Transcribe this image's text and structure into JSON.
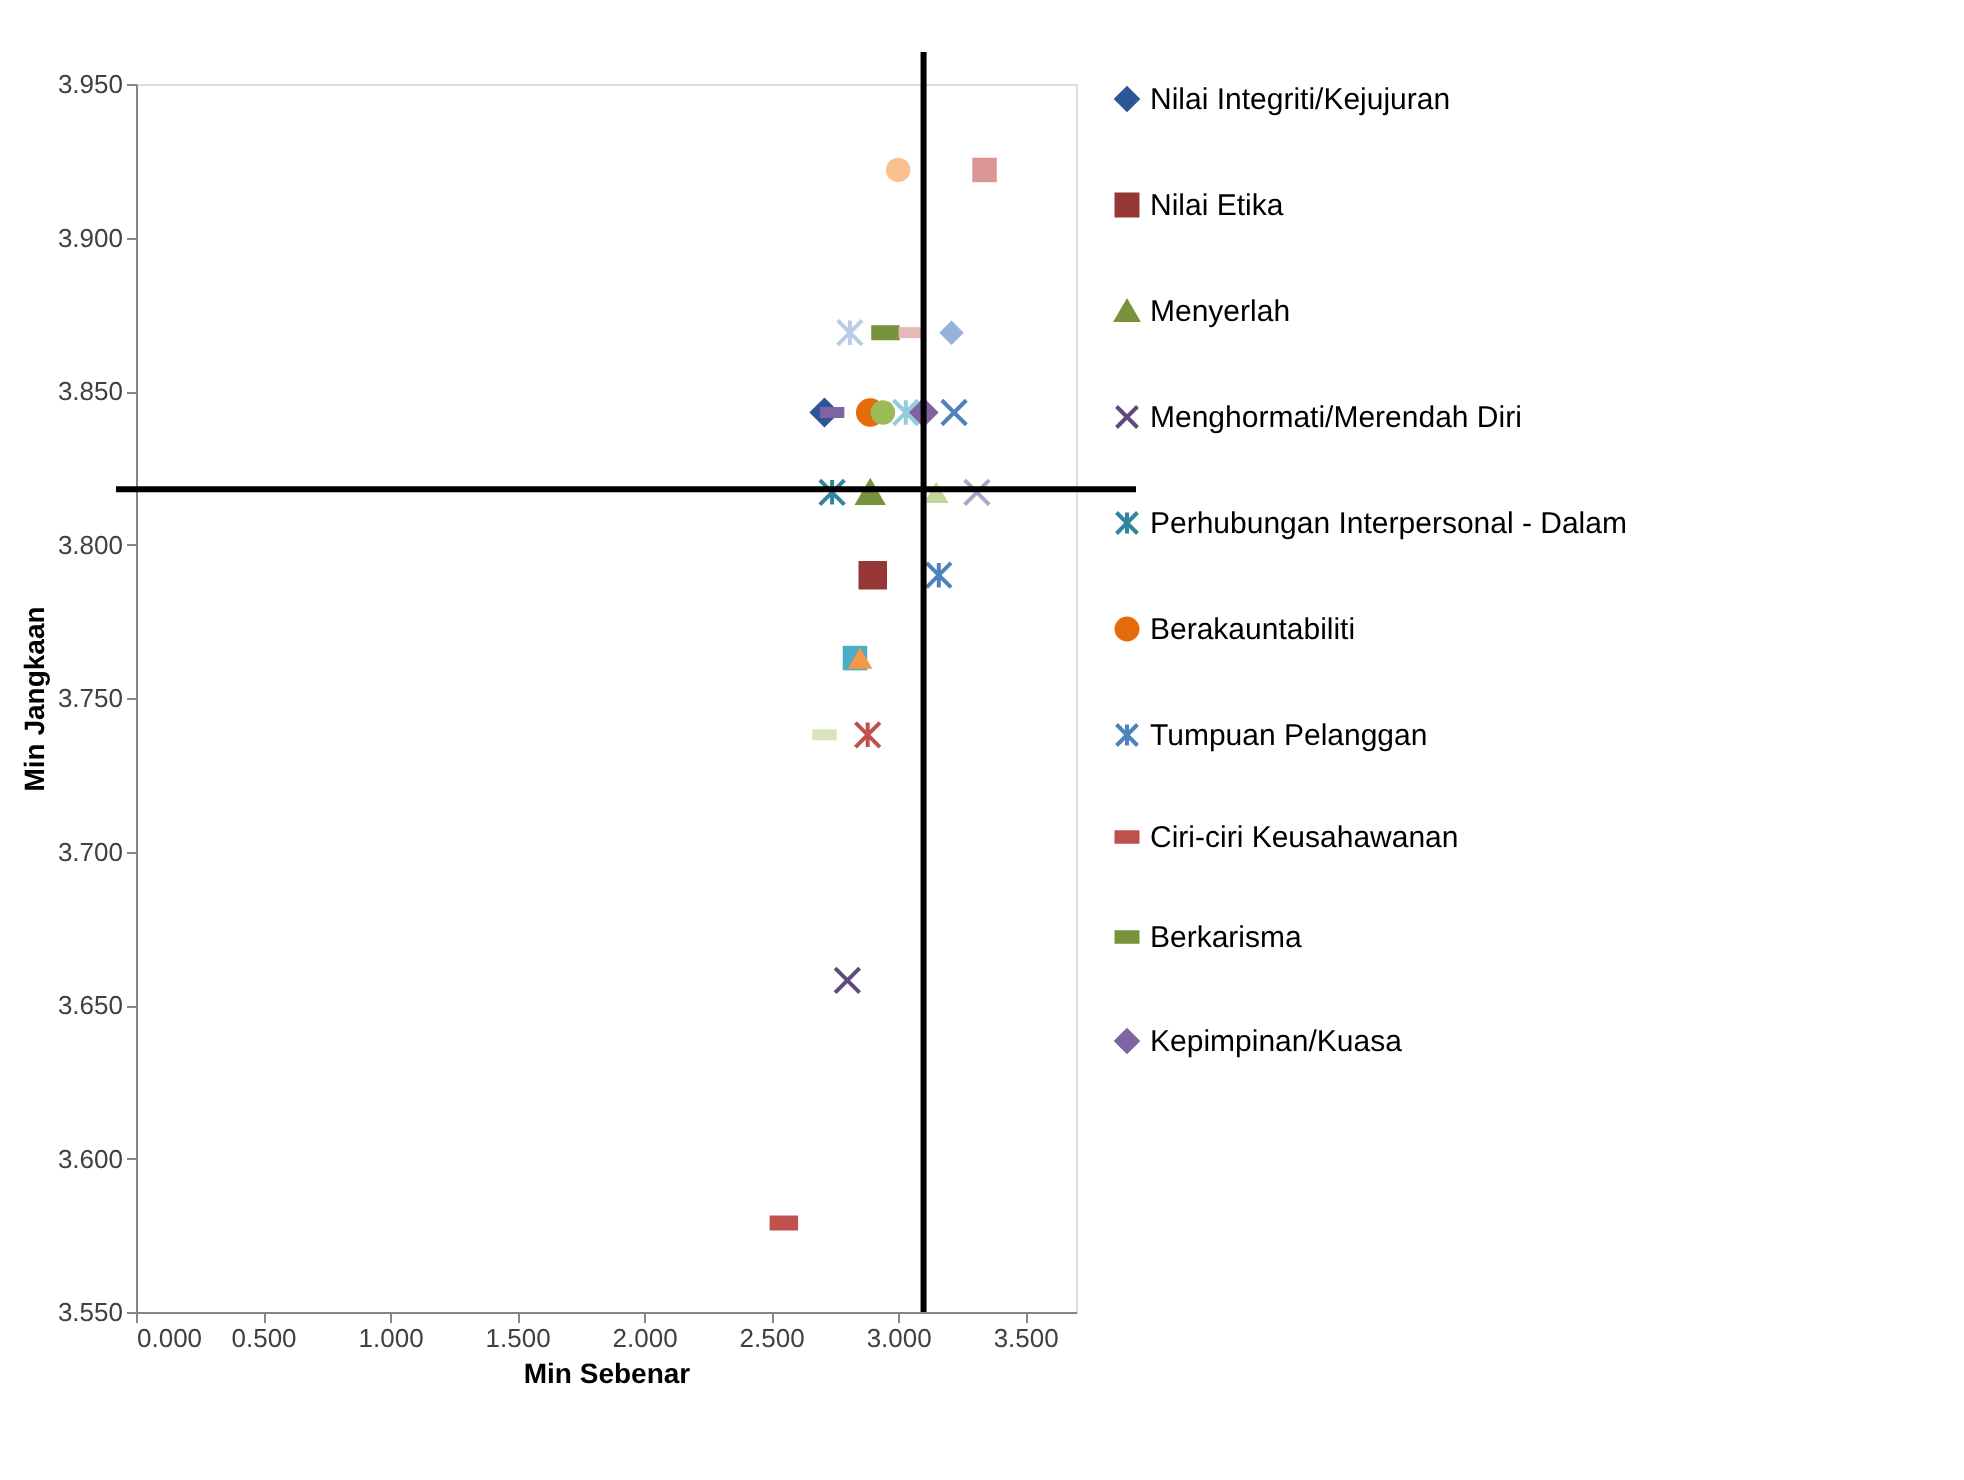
{
  "chart_data": {
    "type": "scatter",
    "xlabel": "Min Sebenar",
    "ylabel": "Min Jangkaan",
    "xlim": [
      0,
      3.7
    ],
    "ylim": [
      3.55,
      3.95
    ],
    "xticks": [
      {
        "value": 0,
        "label": "0.000"
      },
      {
        "value": 0.5,
        "label": "0.500"
      },
      {
        "value": 1,
        "label": "1.000"
      },
      {
        "value": 1.5,
        "label": "1.500"
      },
      {
        "value": 2,
        "label": "2.000"
      },
      {
        "value": 2.5,
        "label": "2.500"
      },
      {
        "value": 3,
        "label": "3.000"
      },
      {
        "value": 3.5,
        "label": "3.500"
      }
    ],
    "yticks": [
      {
        "value": 3.55,
        "label": "3.550"
      },
      {
        "value": 3.6,
        "label": "3.600"
      },
      {
        "value": 3.65,
        "label": "3.650"
      },
      {
        "value": 3.7,
        "label": "3.700"
      },
      {
        "value": 3.75,
        "label": "3.750"
      },
      {
        "value": 3.8,
        "label": "3.800"
      },
      {
        "value": 3.85,
        "label": "3.850"
      },
      {
        "value": 3.9,
        "label": "3.900"
      },
      {
        "value": 3.95,
        "label": "3.950"
      }
    ],
    "grid": false,
    "legend": "right",
    "ref_lines": [
      {
        "axis": "x",
        "value": 3.1,
        "color": "#000000"
      },
      {
        "axis": "y",
        "value": 3.818,
        "color": "#000000"
      }
    ],
    "series": [
      {
        "name": "Nilai Integriti/Kejujuran",
        "color": "#2e5597",
        "marker": "diamond",
        "x": [
          2.71
        ],
        "values": [
          3.843
        ]
      },
      {
        "name": "Nilai Etika",
        "color": "#953735",
        "marker": "square",
        "x": [
          2.9
        ],
        "values": [
          3.79
        ]
      },
      {
        "name": "Menyerlah",
        "color": "#77933c",
        "marker": "triangle",
        "x": [
          2.89
        ],
        "values": [
          3.817
        ]
      },
      {
        "name": "Menghormati/Merendah Diri",
        "color": "#604a7b",
        "marker": "x",
        "x": [
          2.8
        ],
        "values": [
          3.658
        ]
      },
      {
        "name": "Perhubungan Interpersonal - Dalam",
        "color": "#31859c",
        "marker": "cross",
        "x": [
          2.74
        ],
        "values": [
          3.817
        ]
      },
      {
        "name": "Berakauntabiliti",
        "color": "#e46c0a",
        "marker": "circle",
        "x": [
          2.89
        ],
        "values": [
          3.843
        ]
      },
      {
        "name": "Tumpuan Pelanggan",
        "color": "#4f81bd",
        "marker": "cross",
        "x": [
          3.16
        ],
        "values": [
          3.79
        ]
      },
      {
        "name": "Ciri-ciri Keusahawanan",
        "color": "#c0504d",
        "x": [
          2.55
        ],
        "values": [
          3.579
        ]
      },
      {
        "name": "Berkarisma",
        "color": "#77933c",
        "x": [
          2.95
        ],
        "values": [
          3.869
        ]
      },
      {
        "name": "Kepimpinan/Kuasa",
        "color": "#8064a2",
        "marker": "diamond",
        "x": [
          3.1
        ],
        "values": [
          3.843
        ]
      },
      {
        "color": "#fac090",
        "marker": "circle",
        "x": [
          3.0
        ],
        "values": [
          3.922
        ]
      },
      {
        "color": "#d99694",
        "marker": "square",
        "x": [
          3.34
        ],
        "values": [
          3.922
        ]
      },
      {
        "color": "#b9cde5",
        "marker": "cross",
        "x": [
          2.81
        ],
        "values": [
          3.869
        ]
      },
      {
        "color": "#e6b9b8",
        "x": [
          3.05
        ],
        "values": [
          3.869
        ]
      },
      {
        "color": "#95b3d7",
        "marker": "diamond",
        "x": [
          3.21
        ],
        "values": [
          3.869
        ]
      },
      {
        "color": "#8064a2",
        "x": [
          2.74
        ],
        "values": [
          3.843
        ]
      },
      {
        "color": "#9bbb59",
        "marker": "circle",
        "x": [
          2.94
        ],
        "values": [
          3.843
        ]
      },
      {
        "color": "#93cddd",
        "marker": "cross",
        "x": [
          3.03
        ],
        "values": [
          3.843
        ]
      },
      {
        "color": "#4f81bd",
        "marker": "x",
        "x": [
          3.22
        ],
        "values": [
          3.843
        ]
      },
      {
        "color": "#c3d69b",
        "marker": "triangle",
        "x": [
          3.15
        ],
        "values": [
          3.817
        ]
      },
      {
        "color": "#b3a2c7",
        "marker": "x",
        "x": [
          3.31
        ],
        "values": [
          3.817
        ]
      },
      {
        "color": "#4bacc6",
        "marker": "square",
        "x": [
          2.83
        ],
        "values": [
          3.763
        ]
      },
      {
        "color": "#f79646",
        "marker": "triangle",
        "x": [
          2.85
        ],
        "values": [
          3.763
        ]
      },
      {
        "color": "#d7e4bd",
        "x": [
          2.71
        ],
        "values": [
          3.738
        ]
      },
      {
        "color": "#c0504d",
        "marker": "cross",
        "x": [
          2.88
        ],
        "values": [
          3.738
        ]
      }
    ]
  }
}
